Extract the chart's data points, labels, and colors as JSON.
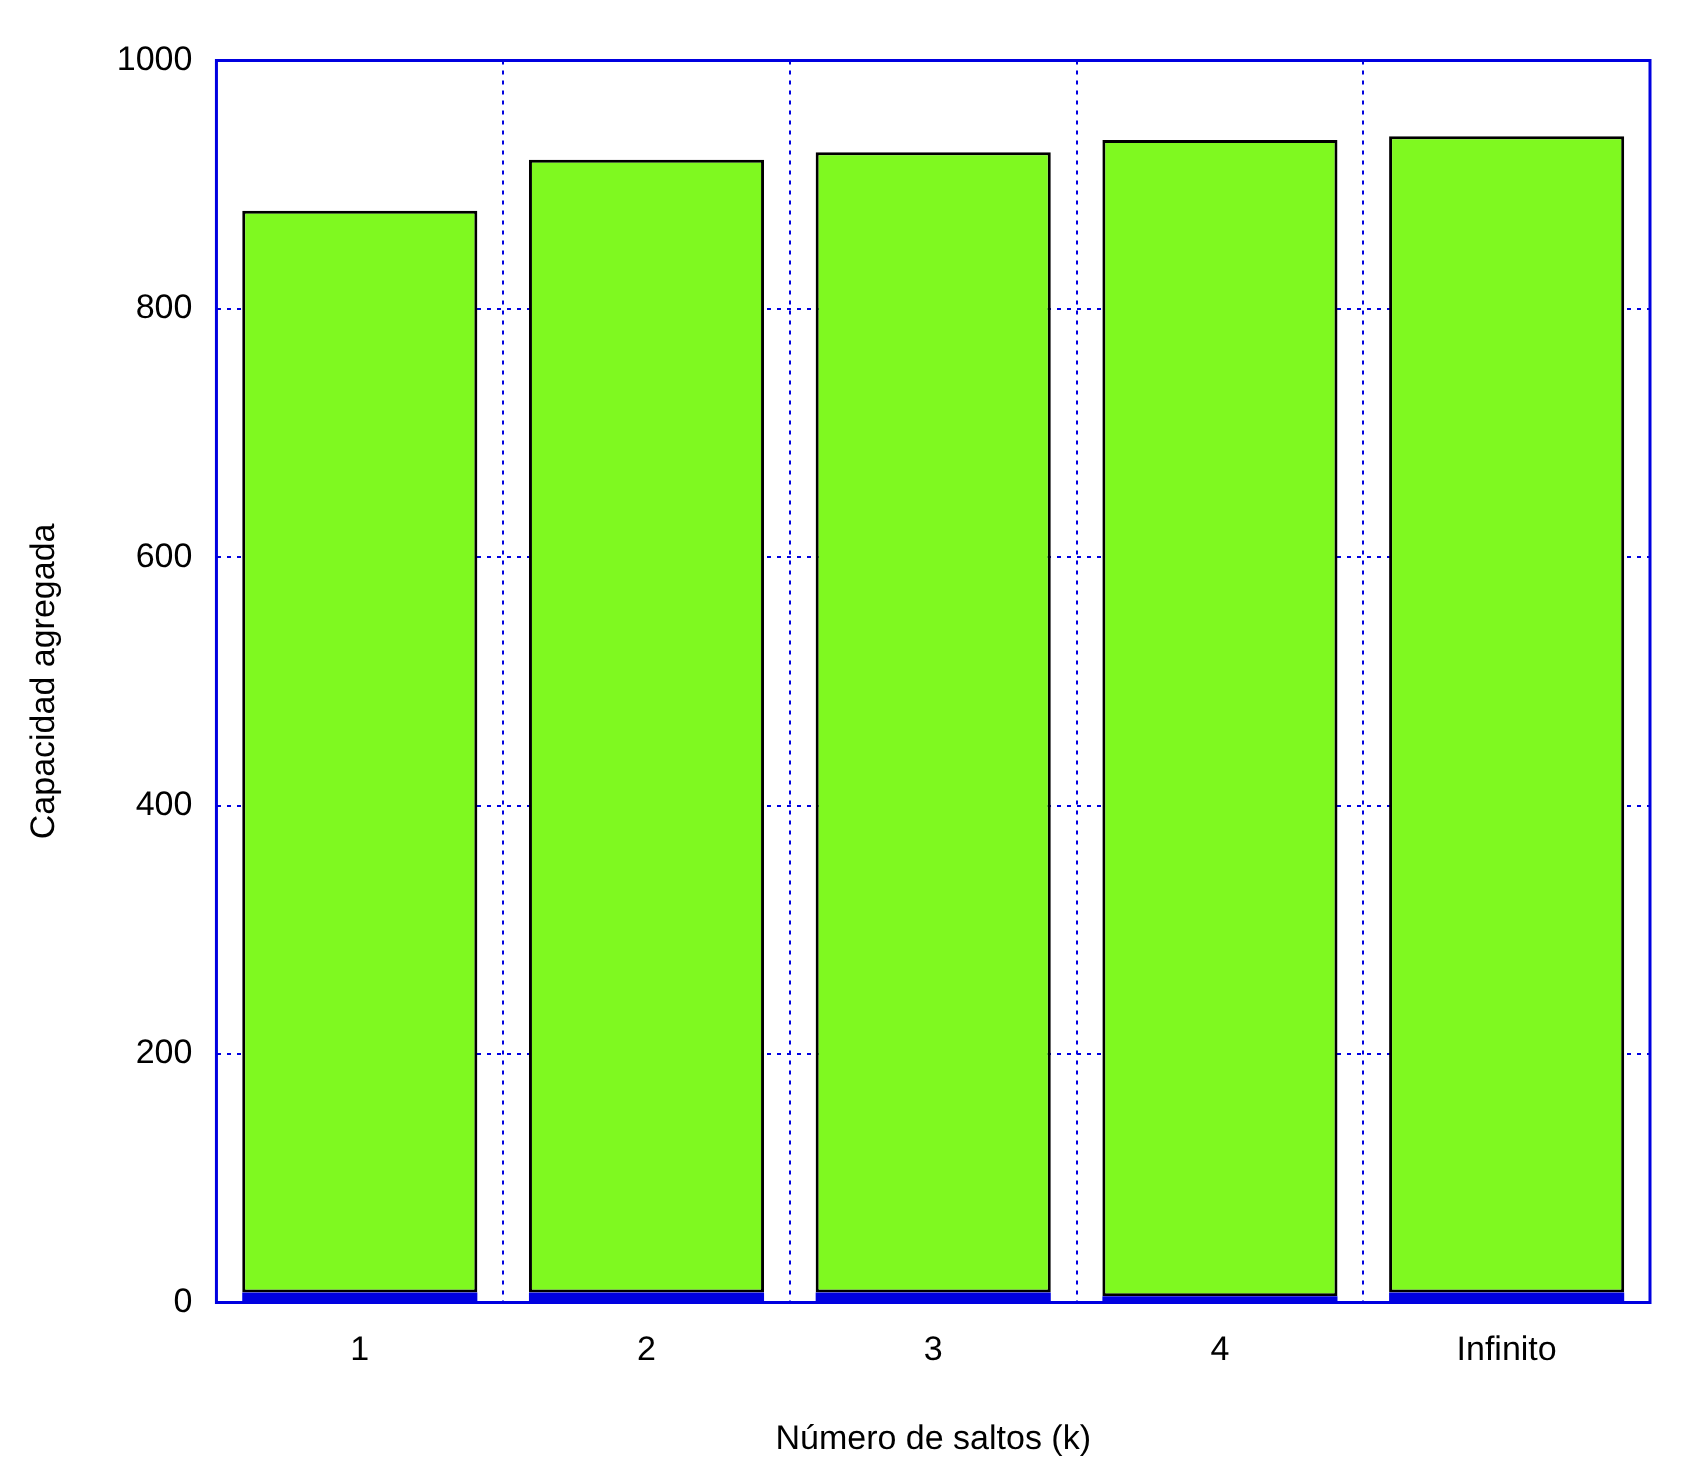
{
  "chart_data": {
    "type": "bar",
    "xlabel": "Número de saltos (k)",
    "ylabel": "Capacidad agregada",
    "categories": [
      "1",
      "2",
      "3",
      "4",
      "Infinito"
    ],
    "stacked": true,
    "series": [
      {
        "color": "#0000e0",
        "values": [
          8,
          8,
          8,
          5,
          8
        ]
      },
      {
        "color": "#7ff920",
        "values": [
          871,
          912,
          918,
          931,
          931
        ]
      }
    ],
    "ylim": [
      0,
      1000
    ],
    "yticks": [
      0,
      200,
      400,
      600,
      800,
      1000
    ],
    "grid": true,
    "legend": false
  }
}
